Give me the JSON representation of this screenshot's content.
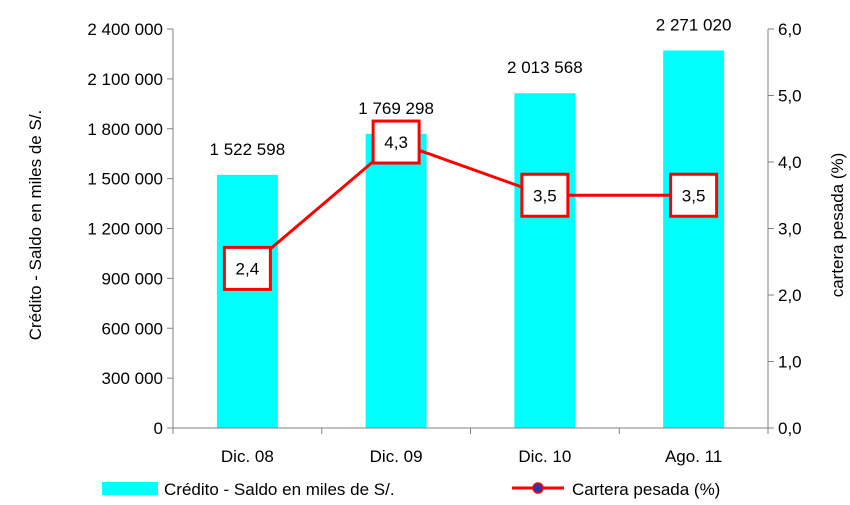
{
  "chart_data": {
    "type": "bar",
    "categories": [
      "Dic. 08",
      "Dic. 09",
      "Dic. 10",
      "Ago. 11"
    ],
    "series": [
      {
        "name": "Crédito - Saldo en miles de S/.",
        "type": "bar",
        "axis": "left",
        "values": [
          1522598,
          1769298,
          2013568,
          2271020
        ],
        "labels": [
          "1 522 598",
          "1 769 298",
          "2 013 568",
          "2 271 020"
        ],
        "color": "#00FFFF"
      },
      {
        "name": "Cartera pesada (%)",
        "type": "line",
        "axis": "right",
        "values": [
          2.4,
          4.3,
          3.5,
          3.5
        ],
        "labels": [
          "2,4",
          "4,3",
          "3,5",
          "3,5"
        ],
        "color": "#FF0000",
        "marker_color": "#3333AA"
      }
    ],
    "ylabel_left": "Crédito - Saldo en miles de S/.",
    "ylabel_right": "cartera pesada (%)",
    "ylim_left": [
      0,
      2400000
    ],
    "ylim_right": [
      0,
      6
    ],
    "yticks_left": [
      "0",
      "300 000",
      "600 000",
      "900 000",
      "1 200 000",
      "1 500 000",
      "1 800 000",
      "2 100 000",
      "2 400 000"
    ],
    "yticks_right": [
      "0,0",
      "1,0",
      "2,0",
      "3,0",
      "4,0",
      "5,0",
      "6,0"
    ],
    "grid": false,
    "legend_position": "bottom"
  }
}
